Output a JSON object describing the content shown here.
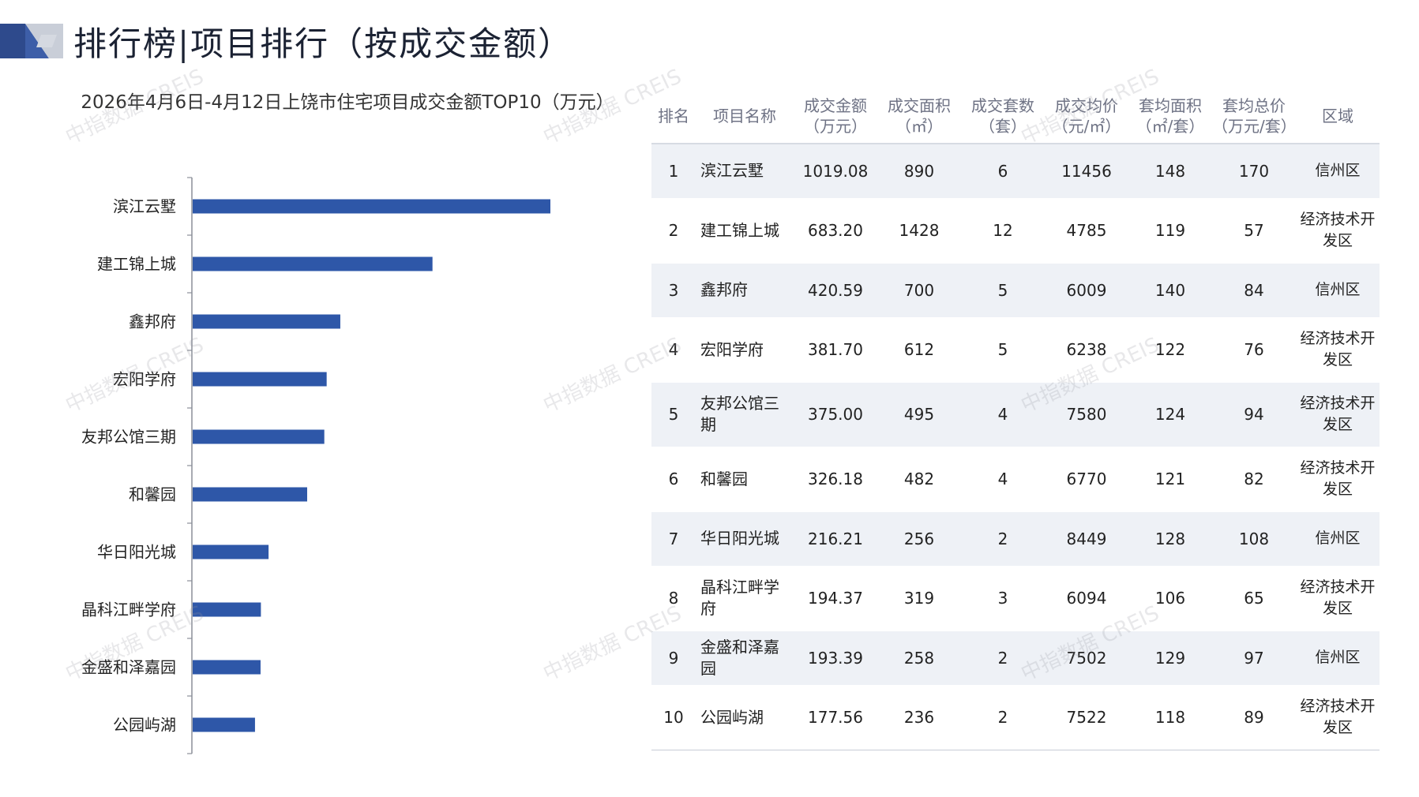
{
  "header": {
    "title": "排行榜|项目排行（按成交金额）"
  },
  "colors": {
    "bar": "#2e57a8",
    "accent": "#2e4a8c",
    "logo_light": "#c9ced8"
  },
  "chart_data": {
    "type": "bar",
    "orientation": "horizontal",
    "title": "2026年4月6日-4月12日上饶市住宅项目成交金额TOP10（万元）",
    "categories": [
      "滨江云墅",
      "建工锦上城",
      "鑫邦府",
      "宏阳学府",
      "友邦公馆三期",
      "和馨园",
      "华日阳光城",
      "晶科江畔学府",
      "金盛和泽嘉园",
      "公园屿湖"
    ],
    "values": [
      1019.08,
      683.2,
      420.59,
      381.7,
      375.0,
      326.18,
      216.21,
      194.37,
      193.39,
      177.56
    ],
    "xlim": [
      0,
      1100
    ],
    "grid": false,
    "legend": "none"
  },
  "table": {
    "headers": [
      [
        "排名"
      ],
      [
        "项目名称"
      ],
      [
        "成交金额",
        "（万元）"
      ],
      [
        "成交面积",
        "（㎡）"
      ],
      [
        "成交套数",
        "（套）"
      ],
      [
        "成交均价",
        "（元/㎡）"
      ],
      [
        "套均面积",
        "（㎡/套）"
      ],
      [
        "套均总价",
        "（万元/套）"
      ],
      [
        "区域"
      ]
    ],
    "rows": [
      [
        "1",
        "滨江云墅",
        "1019.08",
        "890",
        "6",
        "11456",
        "148",
        "170",
        "信州区"
      ],
      [
        "2",
        "建工锦上城",
        "683.20",
        "1428",
        "12",
        "4785",
        "119",
        "57",
        "经济技术开发区"
      ],
      [
        "3",
        "鑫邦府",
        "420.59",
        "700",
        "5",
        "6009",
        "140",
        "84",
        "信州区"
      ],
      [
        "4",
        "宏阳学府",
        "381.70",
        "612",
        "5",
        "6238",
        "122",
        "76",
        "经济技术开发区"
      ],
      [
        "5",
        "友邦公馆三期",
        "375.00",
        "495",
        "4",
        "7580",
        "124",
        "94",
        "经济技术开发区"
      ],
      [
        "6",
        "和馨园",
        "326.18",
        "482",
        "4",
        "6770",
        "121",
        "82",
        "经济技术开发区"
      ],
      [
        "7",
        "华日阳光城",
        "216.21",
        "256",
        "2",
        "8449",
        "128",
        "108",
        "信州区"
      ],
      [
        "8",
        "晶科江畔学府",
        "194.37",
        "319",
        "3",
        "6094",
        "106",
        "65",
        "经济技术开发区"
      ],
      [
        "9",
        "金盛和泽嘉园",
        "193.39",
        "258",
        "2",
        "7502",
        "129",
        "97",
        "信州区"
      ],
      [
        "10",
        "公园屿湖",
        "177.56",
        "236",
        "2",
        "7522",
        "118",
        "89",
        "经济技术开发区"
      ]
    ]
  },
  "watermark": "中指数据 CREIS"
}
